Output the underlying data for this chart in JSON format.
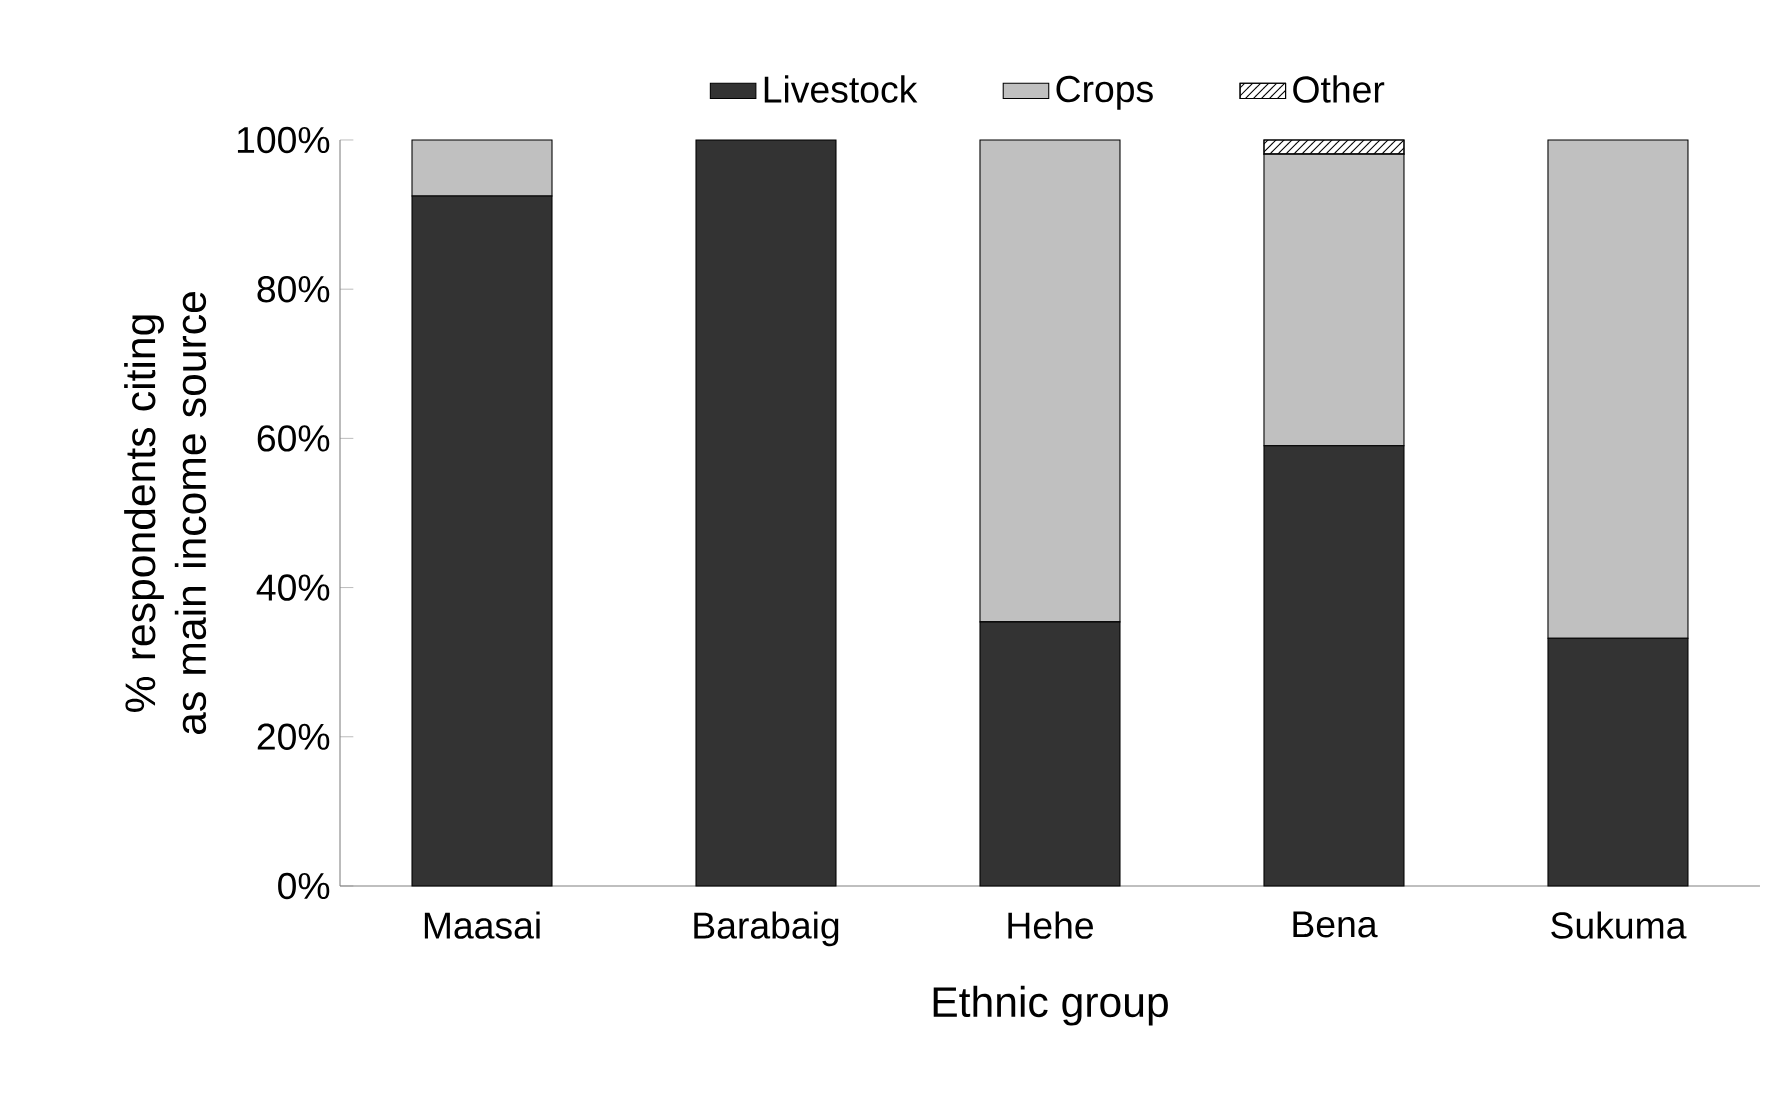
{
  "chart_data": {
    "type": "bar",
    "stacked": true,
    "xlabel": "Ethnic group",
    "ylabel": "% respondents citing as main income source",
    "categories": [
      "Maasai",
      "Barabaig",
      "Hehe",
      "Bena",
      "Sukuma"
    ],
    "series": [
      {
        "name": "Livestock",
        "color": "#333333",
        "values": [
          92.5,
          100,
          35.4,
          59,
          33.2
        ]
      },
      {
        "name": "Crops",
        "color": "#c0c0c0",
        "values": [
          7.5,
          0,
          64.6,
          39.1,
          66.8
        ]
      },
      {
        "name": "Other",
        "color": "#000000",
        "values": [
          0,
          0,
          0,
          1.9,
          0
        ]
      }
    ],
    "ylim": [
      0,
      100
    ],
    "yticks": [
      {
        "value": 0,
        "label": "0%"
      },
      {
        "value": 20,
        "label": "20%"
      },
      {
        "value": 40,
        "label": "40%"
      },
      {
        "value": 60,
        "label": "60%"
      },
      {
        "value": 80,
        "label": "80%"
      },
      {
        "value": 100,
        "label": "100%"
      }
    ],
    "grid": false,
    "legend": "top"
  }
}
